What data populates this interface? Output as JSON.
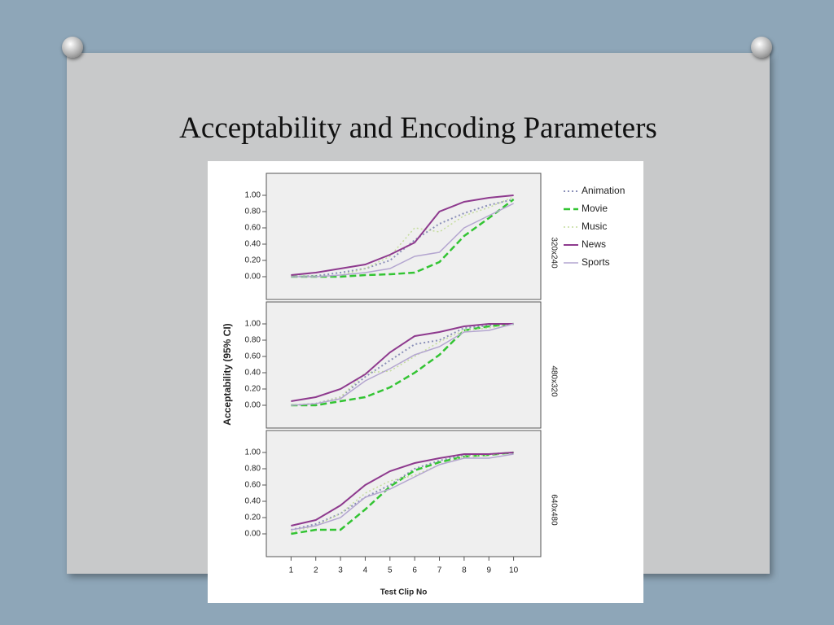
{
  "slide": {
    "title": "Acceptability and Encoding Parameters"
  },
  "chart_data": {
    "type": "line",
    "xlabel": "Test Clip No",
    "ylabel": "Acceptability (95% CI)",
    "panels": [
      "320x240",
      "480x320",
      "640x480"
    ],
    "x": [
      1,
      2,
      3,
      4,
      5,
      6,
      7,
      8,
      9,
      10
    ],
    "xlim": [
      0,
      11.1
    ],
    "xticks": [
      1,
      2,
      3,
      4,
      5,
      6,
      7,
      8,
      9,
      10
    ],
    "ylim": [
      -0.28,
      1.27
    ],
    "yticks": [
      {
        "value": 0,
        "label": "0.00"
      },
      {
        "value": 0.2,
        "label": "0.20"
      },
      {
        "value": 0.4,
        "label": "0.40"
      },
      {
        "value": 0.6,
        "label": "0.60"
      },
      {
        "value": 0.8,
        "label": "0.80"
      },
      {
        "value": 1,
        "label": "1.00"
      }
    ],
    "series": [
      {
        "name": "Animation",
        "color": "#8a8fb8",
        "values": [
          [
            0,
            0.01,
            0.05,
            0.1,
            0.2,
            0.45,
            0.65,
            0.78,
            0.88,
            0.95
          ],
          [
            0,
            0.02,
            0.1,
            0.35,
            0.55,
            0.75,
            0.8,
            0.95,
            0.98,
            1.0
          ],
          [
            0.05,
            0.12,
            0.25,
            0.45,
            0.6,
            0.8,
            0.9,
            0.97,
            0.98,
            1.0
          ]
        ]
      },
      {
        "name": "Movie",
        "color": "#33c433",
        "values": [
          [
            0,
            0,
            0,
            0.02,
            0.03,
            0.05,
            0.18,
            0.5,
            0.72,
            0.95
          ],
          [
            0,
            0,
            0.05,
            0.1,
            0.22,
            0.4,
            0.62,
            0.92,
            0.97,
            1.0
          ],
          [
            0,
            0.05,
            0.05,
            0.3,
            0.58,
            0.78,
            0.88,
            0.95,
            0.97,
            1.0
          ]
        ]
      },
      {
        "name": "Music",
        "color": "#c4dc9c",
        "values": [
          [
            0,
            0,
            0.02,
            0.1,
            0.25,
            0.6,
            0.55,
            0.75,
            0.85,
            0.98
          ],
          [
            0,
            0.02,
            0.1,
            0.4,
            0.42,
            0.6,
            0.78,
            0.92,
            0.95,
            1.0
          ],
          [
            0.02,
            0.1,
            0.25,
            0.5,
            0.65,
            0.72,
            0.85,
            0.95,
            0.97,
            1.0
          ]
        ]
      },
      {
        "name": "News",
        "color": "#8e3a8e",
        "values": [
          [
            0.02,
            0.05,
            0.1,
            0.15,
            0.27,
            0.42,
            0.8,
            0.92,
            0.97,
            1.0
          ],
          [
            0.05,
            0.1,
            0.2,
            0.38,
            0.65,
            0.85,
            0.9,
            0.97,
            1.0,
            1.0
          ],
          [
            0.1,
            0.17,
            0.35,
            0.6,
            0.77,
            0.87,
            0.93,
            0.98,
            0.98,
            1.0
          ]
        ]
      },
      {
        "name": "Sports",
        "color": "#b4a6d0",
        "values": [
          [
            0,
            0,
            0.02,
            0.05,
            0.1,
            0.25,
            0.3,
            0.6,
            0.75,
            0.9
          ],
          [
            0,
            0.02,
            0.08,
            0.3,
            0.45,
            0.62,
            0.72,
            0.9,
            0.92,
            1.0
          ],
          [
            0.05,
            0.1,
            0.2,
            0.45,
            0.55,
            0.7,
            0.85,
            0.93,
            0.93,
            0.98
          ]
        ]
      }
    ]
  }
}
